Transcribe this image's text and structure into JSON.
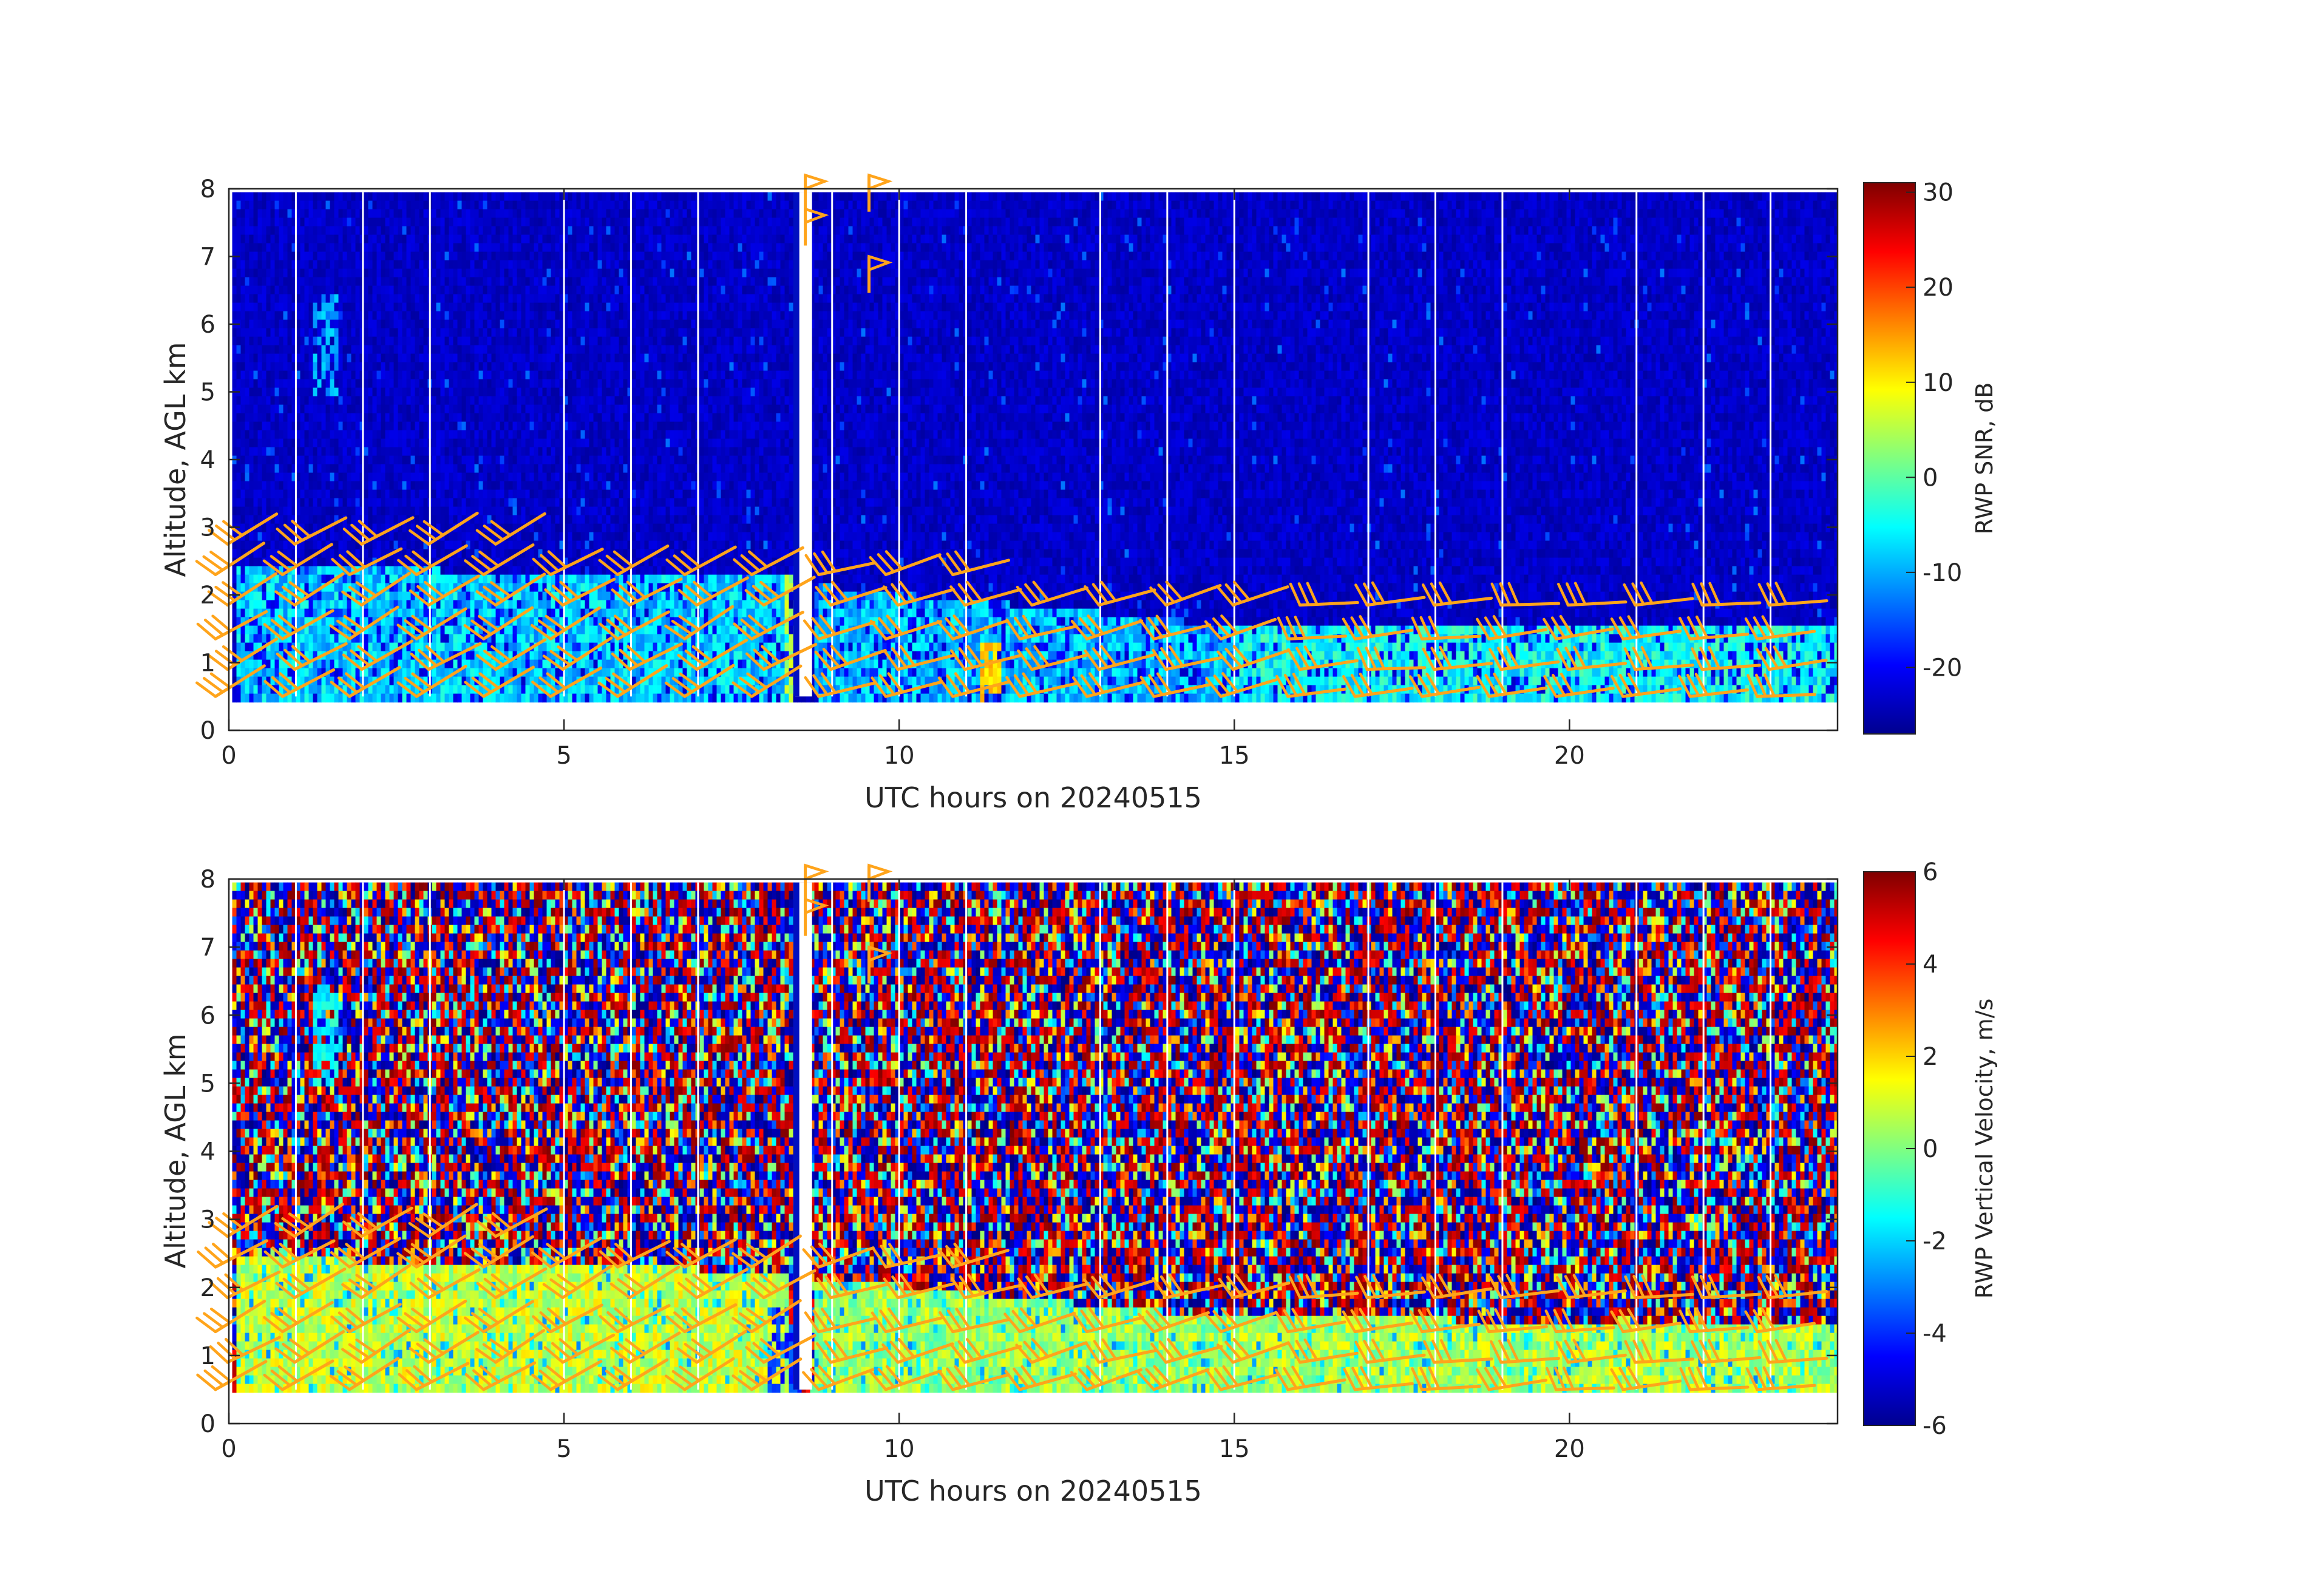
{
  "figure": {
    "background": "#ffffff",
    "barb_color": "#FFA41B",
    "axis_color": "#262626",
    "colormap": "jet"
  },
  "chart_data": [
    {
      "type": "heatmap",
      "variable": "RWP SNR",
      "x": {
        "label": "UTC hours on 20240515",
        "range": [
          0,
          24
        ],
        "ticks": [
          0,
          5,
          10,
          15,
          20
        ],
        "tick_labels": [
          "0",
          "5",
          "10",
          "15",
          "20"
        ]
      },
      "y": {
        "label": "Altitude, AGL km",
        "range": [
          0,
          8
        ],
        "ticks": [
          0,
          1,
          2,
          3,
          4,
          5,
          6,
          7,
          8
        ],
        "tick_labels": [
          "0",
          "1",
          "2",
          "3",
          "4",
          "5",
          "6",
          "7",
          "8"
        ]
      },
      "data_extent": {
        "x": [
          0.05,
          24.0
        ],
        "y": [
          0.5,
          7.95
        ]
      },
      "colorbar": {
        "label": "RWP SNR, dB",
        "range": [
          -27,
          31
        ],
        "ticks": [
          -20,
          -10,
          0,
          10,
          20,
          30
        ],
        "tick_labels": [
          "-20",
          "-10",
          "0",
          "10",
          "20",
          "30"
        ]
      },
      "background_value": -23,
      "data_gaps_hours": [
        1.0,
        2.0,
        3.0,
        5.0,
        6.0,
        7.0,
        9.0,
        10.0,
        11.0,
        13.0,
        14.0,
        15.0,
        17.0,
        18.0,
        19.0,
        21.0,
        22.0,
        23.0
      ],
      "layers": [
        {
          "name": "boundary layer echo",
          "x_start": 0.05,
          "x_end": 8.3,
          "y_bottom": 0.5,
          "y_top_start": 2.5,
          "y_top_end": 2.3,
          "value": -8
        },
        {
          "name": "boundary layer echo",
          "x_start": 8.7,
          "x_end": 15.0,
          "y_bottom": 0.5,
          "y_top_start": 2.2,
          "y_top_end": 1.6,
          "value": -9
        },
        {
          "name": "boundary layer echo",
          "x_start": 15.0,
          "x_end": 24.0,
          "y_bottom": 0.5,
          "y_top_start": 1.6,
          "y_top_end": 1.55,
          "value": -5
        }
      ],
      "features": [
        {
          "name": "elevated echo",
          "x": [
            1.2,
            1.6
          ],
          "y": [
            5.0,
            6.5
          ],
          "value": -10
        },
        {
          "name": "strong echo",
          "x": [
            11.2,
            11.5
          ],
          "y": [
            0.5,
            1.3
          ],
          "value": 12
        },
        {
          "name": "strong echo",
          "x": [
            8.25,
            8.55
          ],
          "y": [
            0.5,
            2.4
          ],
          "value": 5
        }
      ]
    },
    {
      "type": "heatmap",
      "variable": "RWP Vertical Velocity",
      "x": {
        "label": "UTC hours on 20240515",
        "range": [
          0,
          24
        ],
        "ticks": [
          0,
          5,
          10,
          15,
          20
        ],
        "tick_labels": [
          "0",
          "5",
          "10",
          "15",
          "20"
        ]
      },
      "y": {
        "label": "Altitude, AGL km",
        "range": [
          0,
          8
        ],
        "ticks": [
          0,
          1,
          2,
          3,
          4,
          5,
          6,
          7,
          8
        ],
        "tick_labels": [
          "0",
          "1",
          "2",
          "3",
          "4",
          "5",
          "6",
          "7",
          "8"
        ]
      },
      "data_extent": {
        "x": [
          0.05,
          24.0
        ],
        "y": [
          0.5,
          7.95
        ]
      },
      "colorbar": {
        "label": "RWP Vertical Velocity, m/s",
        "range": [
          -6,
          6
        ],
        "ticks": [
          -6,
          -4,
          -2,
          0,
          2,
          4,
          6
        ],
        "tick_labels": [
          "-6",
          "-4",
          "-2",
          "0",
          "2",
          "4",
          "6"
        ]
      },
      "background": "noisy, values spanning -6 to 6",
      "data_gaps_hours": [
        1.0,
        2.0,
        3.0,
        5.0,
        6.0,
        7.0,
        9.0,
        10.0,
        11.0,
        13.0,
        14.0,
        15.0,
        17.0,
        18.0,
        19.0,
        21.0,
        22.0,
        23.0
      ],
      "layers": [
        {
          "name": "boundary layer echo",
          "x_start": 0.05,
          "x_end": 8.3,
          "y_bottom": 0.5,
          "y_top_start": 2.5,
          "y_top_end": 2.3,
          "value": 0.8
        },
        {
          "name": "boundary layer echo",
          "x_start": 8.7,
          "x_end": 15.0,
          "y_bottom": 0.5,
          "y_top_start": 2.2,
          "y_top_end": 1.6,
          "value": 0.3
        },
        {
          "name": "boundary layer echo",
          "x_start": 15.0,
          "x_end": 24.0,
          "y_bottom": 0.5,
          "y_top_start": 1.6,
          "y_top_end": 1.55,
          "value": 0.5
        }
      ],
      "features": [
        {
          "name": "elevated echo",
          "x": [
            1.2,
            1.6
          ],
          "y": [
            5.0,
            6.5
          ],
          "value": -1.5
        },
        {
          "name": "downdraft",
          "x": [
            8.0,
            8.5
          ],
          "y": [
            0.5,
            1.8
          ],
          "value": -4
        }
      ]
    }
  ],
  "wind_barbs": {
    "color": "#FFA41B",
    "times": [
      0,
      1,
      2,
      3,
      4,
      5,
      6,
      7,
      8,
      9,
      10,
      11,
      12,
      13,
      14,
      15,
      16,
      17,
      18,
      19,
      20,
      21,
      22,
      23
    ],
    "levels_km": [
      0.5,
      0.9,
      1.35,
      1.85,
      2.3,
      2.75
    ],
    "top_level_barbs": [
      {
        "x": 8.6,
        "y": 7.7
      },
      {
        "x": 8.6,
        "y": 8.2
      },
      {
        "x": 9.55,
        "y": 7.0
      },
      {
        "x": 9.55,
        "y": 8.2
      }
    ]
  }
}
